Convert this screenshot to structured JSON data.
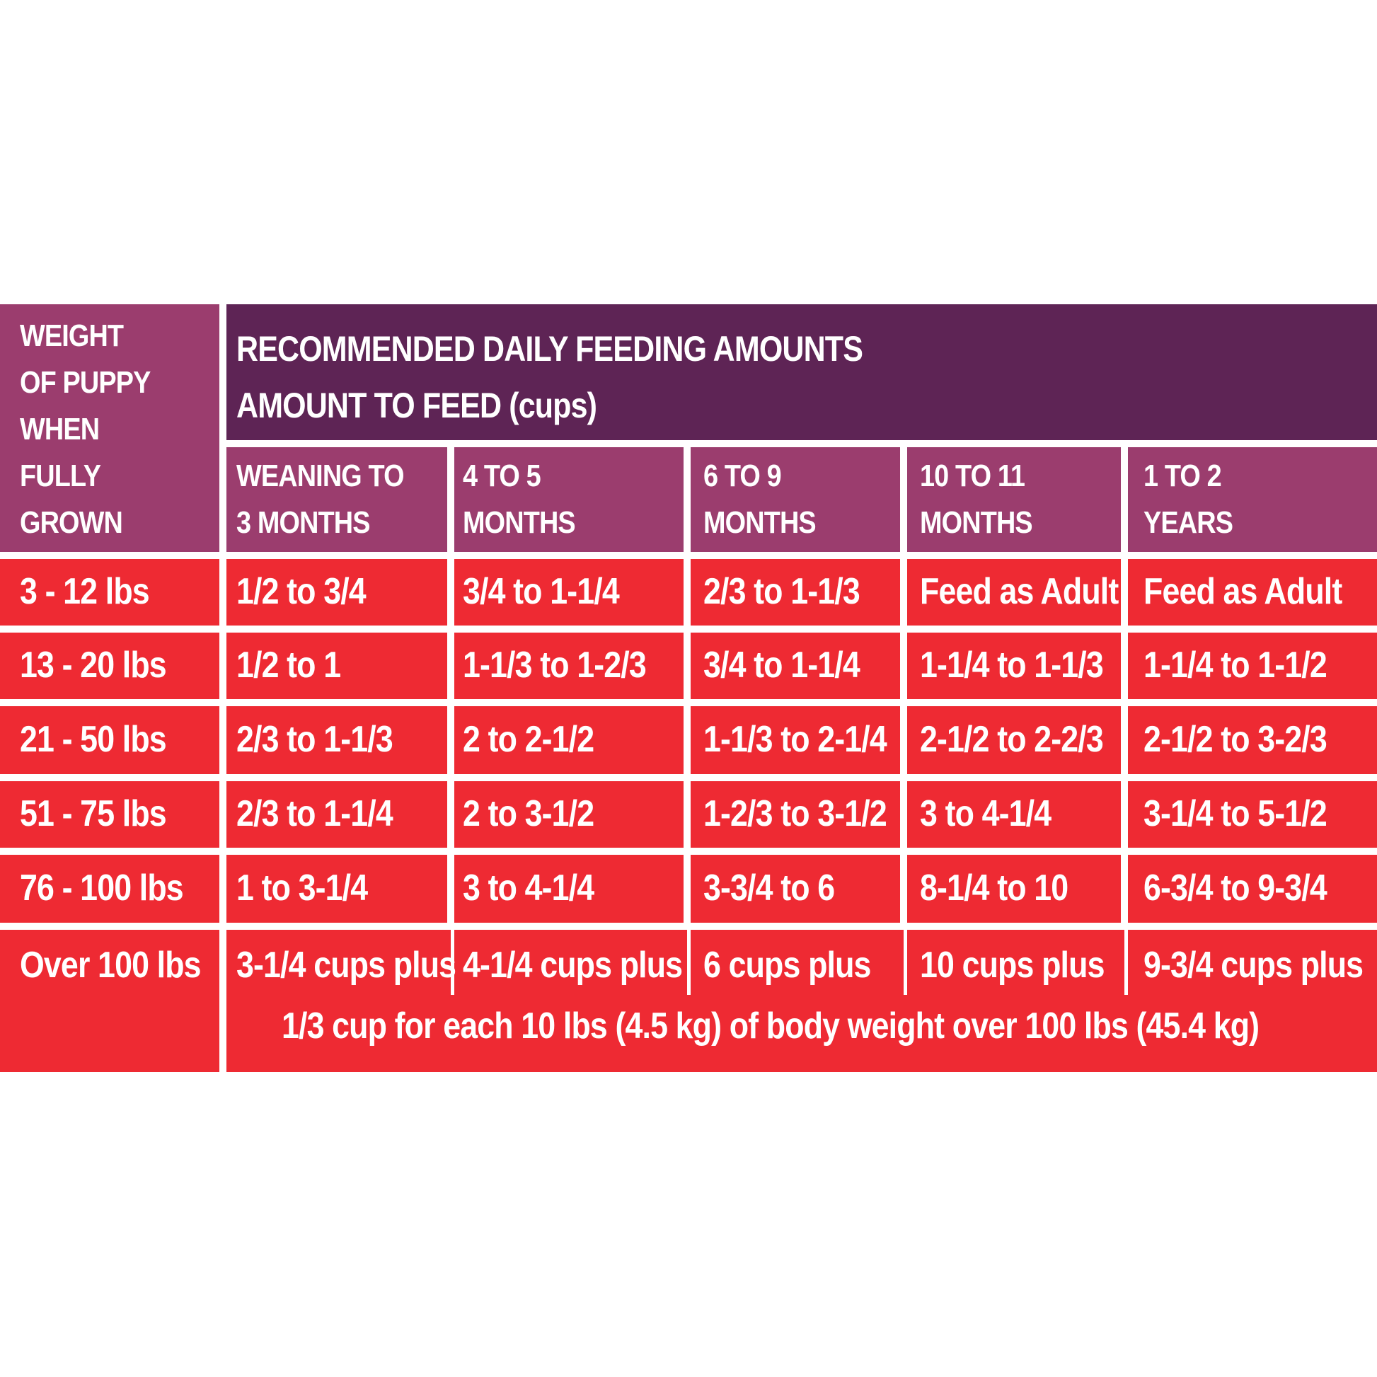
{
  "table": {
    "corner_label_lines": [
      "WEIGHT",
      "OF PUPPY",
      "WHEN",
      "FULLY",
      "GROWN"
    ],
    "title": "RECOMMENDED DAILY FEEDING AMOUNTS",
    "subtitle": "AMOUNT TO FEED (cups)",
    "columns": [
      {
        "line1": "WEANING TO",
        "line2": "3 MONTHS"
      },
      {
        "line1": "4 TO 5",
        "line2": "MONTHS"
      },
      {
        "line1": "6 TO 9",
        "line2": "MONTHS"
      },
      {
        "line1": "10 TO 11",
        "line2": "MONTHS"
      },
      {
        "line1": "1 TO 2",
        "line2": "YEARS"
      }
    ],
    "rows": [
      {
        "weight": "3 - 12 lbs",
        "values": [
          "1/2 to 3/4",
          "3/4 to 1-1/4",
          "2/3 to 1-1/3",
          "Feed as Adult",
          "Feed as Adult"
        ]
      },
      {
        "weight": "13 - 20 lbs",
        "values": [
          "1/2 to 1",
          "1-1/3 to 1-2/3",
          "3/4 to 1-1/4",
          "1-1/4 to 1-1/3",
          "1-1/4 to 1-1/2"
        ]
      },
      {
        "weight": "21 - 50 lbs",
        "values": [
          "2/3 to 1-1/3",
          "2 to 2-1/2",
          "1-1/3 to 2-1/4",
          "2-1/2 to 2-2/3",
          "2-1/2 to 3-2/3"
        ]
      },
      {
        "weight": "51 - 75 lbs",
        "values": [
          "2/3 to 1-1/4",
          "2 to 3-1/2",
          "1-2/3 to 3-1/2",
          "3 to 4-1/4",
          "3-1/4 to 5-1/2"
        ]
      },
      {
        "weight": "76 - 100 lbs",
        "values": [
          "1 to 3-1/4",
          "3 to 4-1/4",
          "3-3/4 to 6",
          "8-1/4 to 10",
          "6-3/4 to 9-3/4"
        ]
      }
    ],
    "last_row": {
      "weight": "Over 100 lbs",
      "values": [
        "3-1/4 cups plus",
        "4-1/4 cups plus",
        "6 cups plus",
        "10 cups plus",
        "9-3/4 cups plus"
      ],
      "footnote": "1/3 cup for each 10 lbs (4.5 kg) of body weight over 100 lbs (45.4 kg)"
    },
    "colors": {
      "red": "#ee2a33",
      "plum": "#9b3d6e",
      "dark_purple": "#5e2455",
      "text": "#ffffff"
    }
  }
}
